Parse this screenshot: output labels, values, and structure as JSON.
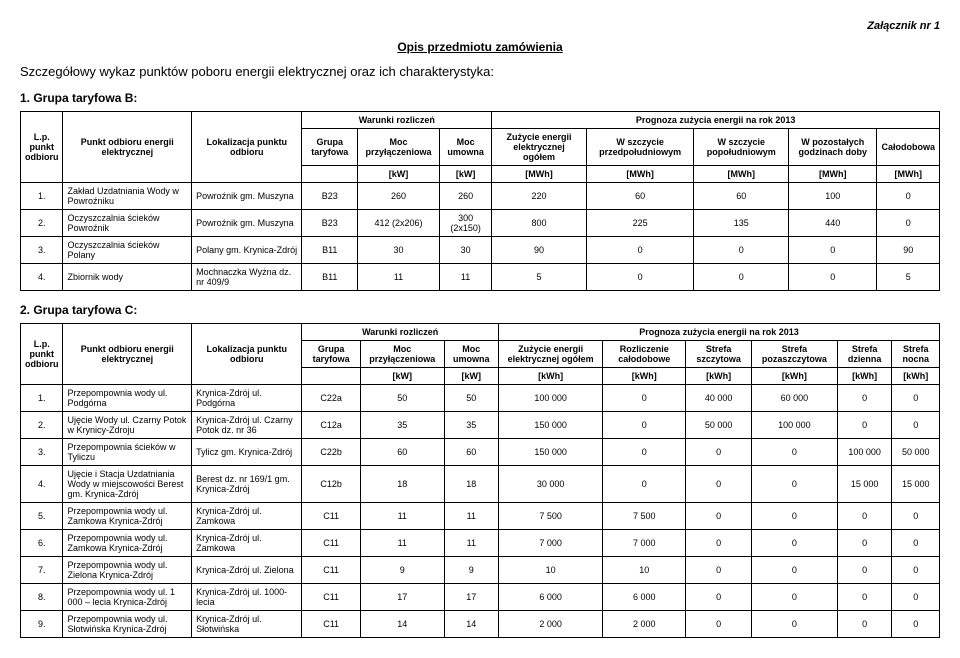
{
  "attachment": "Załącznik nr 1",
  "title": "Opis przedmiotu zamówienia",
  "subtitle": "Szczegółowy wykaz punktów poboru energii elektrycznej oraz ich charakterystyka:",
  "section1": {
    "header": "1. Grupa taryfowa B:",
    "columns": {
      "lp": "L.p. punkt odbioru",
      "name": "Punkt odbioru energii elektrycznej",
      "loc": "Lokalizacja punktu odbioru",
      "warunki": "Warunki rozliczeń",
      "prognoza": "Prognoza zużycia energii na rok 2013",
      "grupa": "Grupa taryfowa",
      "moc_p": "Moc przyłączeniowa",
      "moc_u": "Moc umowna",
      "zuzycie": "Zużycie energii elektrycznej ogółem",
      "przed": "W szczycie przedpołudniowym",
      "popo": "W szczycie popołudniowym",
      "poz": "W pozostałych godzinach doby",
      "calo": "Całodobowa",
      "unit_kw": "[kW]",
      "unit_mwh": "[MWh]"
    },
    "rows": [
      {
        "lp": "1.",
        "name": "Zakład Uzdatniania Wody w Powroźniku",
        "loc": "Powroźnik gm. Muszyna",
        "grupa": "B23",
        "mp": "260",
        "mu": "260",
        "zu": "220",
        "c1": "60",
        "c2": "60",
        "c3": "100",
        "c4": "0"
      },
      {
        "lp": "2.",
        "name": "Oczyszczalnia ścieków Powroźnik",
        "loc": "Powroźnik gm. Muszyna",
        "grupa": "B23",
        "mp": "412 (2x206)",
        "mu": "300 (2x150)",
        "zu": "800",
        "c1": "225",
        "c2": "135",
        "c3": "440",
        "c4": "0"
      },
      {
        "lp": "3.",
        "name": "Oczyszczalnia ścieków Polany",
        "loc": "Polany gm. Krynica-Zdrój",
        "grupa": "B11",
        "mp": "30",
        "mu": "30",
        "zu": "90",
        "c1": "0",
        "c2": "0",
        "c3": "0",
        "c4": "90"
      },
      {
        "lp": "4.",
        "name": "Zbiornik wody",
        "loc": "Mochnaczka Wyżna dz. nr 409/9",
        "grupa": "B11",
        "mp": "11",
        "mu": "11",
        "zu": "5",
        "c1": "0",
        "c2": "0",
        "c3": "0",
        "c4": "5"
      }
    ]
  },
  "section2": {
    "header": "2. Grupa taryfowa C:",
    "columns": {
      "lp": "L.p. punkt odbioru",
      "name": "Punkt odbioru energii elektrycznej",
      "loc": "Lokalizacja punktu odbioru",
      "warunki": "Warunki rozliczeń",
      "prognoza": "Prognoza zużycia energii na rok 2013",
      "grupa": "Grupa taryfowa",
      "moc_p": "Moc przyłączeniowa",
      "moc_u": "Moc umowna",
      "zuzycie": "Zużycie energii elektrycznej ogółem",
      "rozl": "Rozliczenie całodobowe",
      "szczyt": "Strefa szczytowa",
      "poza": "Strefa pozaszczytowa",
      "dzien": "Strefa dzienna",
      "noc": "Strefa nocna",
      "unit_kw": "[kW]",
      "unit_kwh": "[kWh]"
    },
    "rows": [
      {
        "lp": "1.",
        "name": "Przepompownia wody ul. Podgórna",
        "loc": "Krynica-Zdrój ul. Podgórna",
        "grupa": "C22a",
        "mp": "50",
        "mu": "50",
        "zu": "100 000",
        "c1": "0",
        "c2": "40 000",
        "c3": "60 000",
        "c4": "0",
        "c5": "0"
      },
      {
        "lp": "2.",
        "name": "Ujęcie Wody ul. Czarny Potok w Krynicy-Zdroju",
        "loc": "Krynica-Zdrój ul. Czarny Potok dz. nr 36",
        "grupa": "C12a",
        "mp": "35",
        "mu": "35",
        "zu": "150 000",
        "c1": "0",
        "c2": "50 000",
        "c3": "100 000",
        "c4": "0",
        "c5": "0"
      },
      {
        "lp": "3.",
        "name": "Przepompownia ścieków w Tyliczu",
        "loc": "Tylicz gm. Krynica-Zdrój",
        "grupa": "C22b",
        "mp": "60",
        "mu": "60",
        "zu": "150 000",
        "c1": "0",
        "c2": "0",
        "c3": "0",
        "c4": "100 000",
        "c5": "50 000"
      },
      {
        "lp": "4.",
        "name": "Ujęcie i Stacja Uzdatniania Wody w miejscowości Berest gm. Krynica-Zdrój",
        "loc": "Berest dz. nr 169/1 gm. Krynica-Zdrój",
        "grupa": "C12b",
        "mp": "18",
        "mu": "18",
        "zu": "30 000",
        "c1": "0",
        "c2": "0",
        "c3": "0",
        "c4": "15 000",
        "c5": "15 000"
      },
      {
        "lp": "5.",
        "name": "Przepompownia wody ul. Zamkowa Krynica-Zdrój",
        "loc": "Krynica-Zdrój ul. Zamkowa",
        "grupa": "C11",
        "mp": "11",
        "mu": "11",
        "zu": "7 500",
        "c1": "7 500",
        "c2": "0",
        "c3": "0",
        "c4": "0",
        "c5": "0"
      },
      {
        "lp": "6.",
        "name": "Przepompownia wody ul. Zamkowa Krynica-Zdrój",
        "loc": "Krynica-Zdrój ul. Zamkowa",
        "grupa": "C11",
        "mp": "11",
        "mu": "11",
        "zu": "7 000",
        "c1": "7 000",
        "c2": "0",
        "c3": "0",
        "c4": "0",
        "c5": "0"
      },
      {
        "lp": "7.",
        "name": "Przepompownia wody ul. Zielona Krynica-Zdrój",
        "loc": "Krynica-Zdrój ul. Zielona",
        "grupa": "C11",
        "mp": "9",
        "mu": "9",
        "zu": "10",
        "c1": "10",
        "c2": "0",
        "c3": "0",
        "c4": "0",
        "c5": "0"
      },
      {
        "lp": "8.",
        "name": "Przepompownia wody ul. 1 000 – lecia Krynica-Zdrój",
        "loc": "Krynica-Zdrój ul. 1000-lecia",
        "grupa": "C11",
        "mp": "17",
        "mu": "17",
        "zu": "6 000",
        "c1": "6 000",
        "c2": "0",
        "c3": "0",
        "c4": "0",
        "c5": "0"
      },
      {
        "lp": "9.",
        "name": "Przepompownia wody ul. Słotwińska Krynica-Zdrój",
        "loc": "Krynica-Zdrój ul. Słotwińska",
        "grupa": "C11",
        "mp": "14",
        "mu": "14",
        "zu": "2 000",
        "c1": "2 000",
        "c2": "0",
        "c3": "0",
        "c4": "0",
        "c5": "0"
      }
    ]
  }
}
